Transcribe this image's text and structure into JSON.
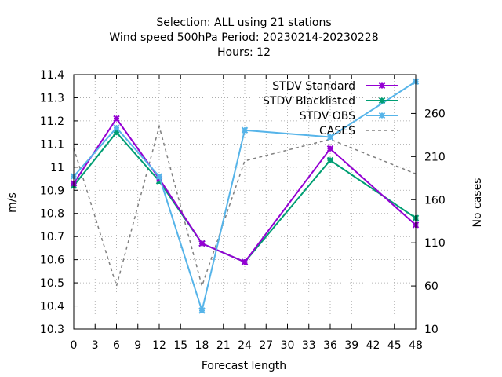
{
  "chart_data": {
    "type": "line",
    "title_lines": [
      "Selection: ALL using    21 stations",
      "Wind speed 500hPa   Period: 20230214-20230228",
      "Hours:  12"
    ],
    "xlabel": "Forecast length",
    "ylabel": "m/s",
    "y2label": "No cases",
    "xlim": [
      0,
      48
    ],
    "ylim": [
      10.3,
      11.4
    ],
    "y2lim": [
      10,
      305
    ],
    "x_ticks": [
      "0",
      "3",
      "6",
      "9",
      "12",
      "15",
      "18",
      "21",
      "24",
      "27",
      "30",
      "33",
      "36",
      "39",
      "42",
      "45",
      "48"
    ],
    "y_ticks": [
      "10.3",
      "10.4",
      "10.5",
      "10.6",
      "10.7",
      "10.8",
      "10.9",
      "11",
      "11.1",
      "11.2",
      "11.3",
      "11.4"
    ],
    "y2_ticks": [
      "10",
      "60",
      "110",
      "160",
      "210",
      "260"
    ],
    "grid": true,
    "legend_position": "top-right",
    "series": [
      {
        "name": "STDV Standard",
        "color": "#9400d3",
        "axis": "y",
        "marker": "x-star",
        "x": [
          0,
          6,
          12,
          18,
          24,
          36,
          48
        ],
        "y": [
          10.93,
          11.21,
          10.95,
          10.67,
          10.59,
          11.08,
          10.75
        ]
      },
      {
        "name": "STDV Blacklisted",
        "color": "#009e73",
        "axis": "y",
        "marker": "x-star",
        "x": [
          0,
          6,
          12,
          18,
          24,
          36,
          48
        ],
        "y": [
          10.92,
          11.15,
          10.94,
          10.67,
          10.59,
          11.03,
          10.78
        ]
      },
      {
        "name": "STDV OBS",
        "color": "#56b4e9",
        "axis": "y",
        "marker": "x-star",
        "x": [
          0,
          6,
          12,
          18,
          24,
          36,
          48
        ],
        "y": [
          10.96,
          11.17,
          10.96,
          10.38,
          11.16,
          11.13,
          11.37
        ]
      },
      {
        "name": "CASES",
        "color": "#808080",
        "axis": "y2",
        "marker": "none",
        "dashed": true,
        "x": [
          0,
          6,
          12,
          18,
          24,
          36,
          48
        ],
        "y": [
          220,
          60,
          245,
          60,
          205,
          230,
          190
        ]
      }
    ]
  }
}
